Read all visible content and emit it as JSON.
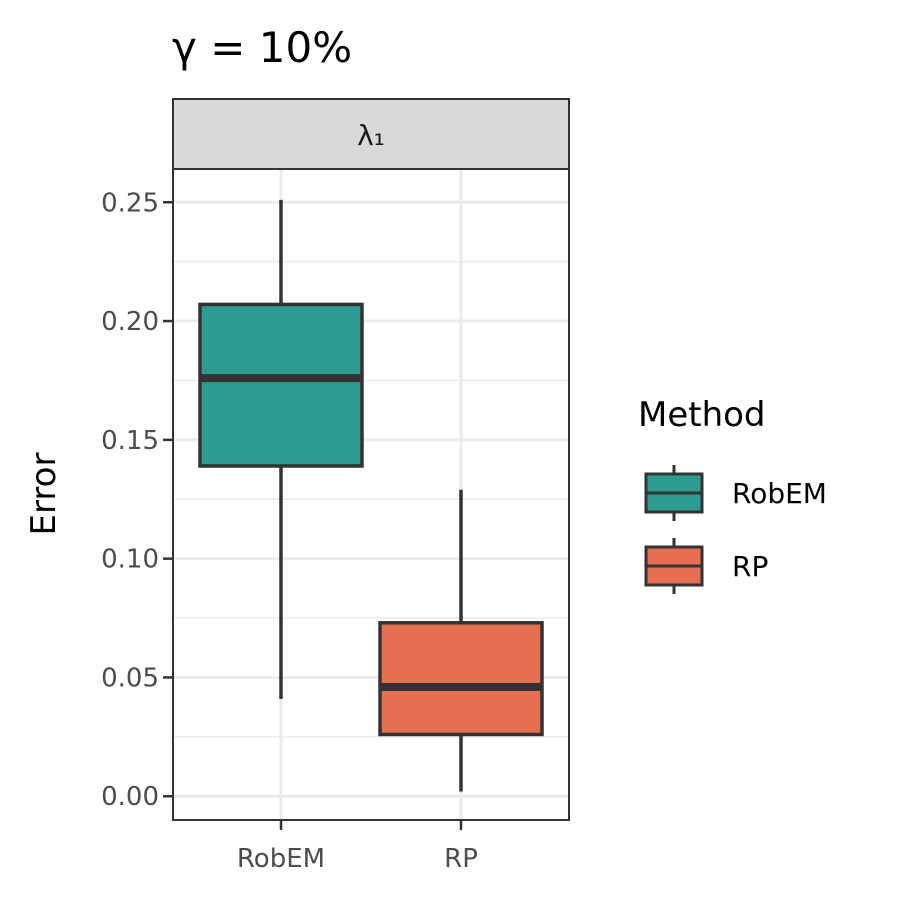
{
  "chart_data": {
    "type": "box",
    "title": "γ = 10%",
    "facet_label": "λ₁",
    "ylabel": "Error",
    "xlabel": "",
    "ylim": [
      -0.01,
      0.264
    ],
    "y_ticks": [
      0.0,
      0.05,
      0.1,
      0.15,
      0.2,
      0.25
    ],
    "y_tick_labels": [
      "0.00",
      "0.05",
      "0.10",
      "0.15",
      "0.20",
      "0.25"
    ],
    "categories": [
      "RobEM",
      "RP"
    ],
    "series": [
      {
        "name": "RobEM",
        "color": "#2A9D8F",
        "whisker_low": 0.041,
        "q1": 0.139,
        "median": 0.176,
        "q3": 0.207,
        "whisker_high": 0.251
      },
      {
        "name": "RP",
        "color": "#E76F51",
        "whisker_low": 0.002,
        "q1": 0.026,
        "median": 0.046,
        "q3": 0.073,
        "whisker_high": 0.129
      }
    ],
    "legend": {
      "title": "Method",
      "position": "right"
    },
    "grid": true,
    "theme": {
      "outline": "#333333",
      "grid_major": "#ebebeb",
      "strip_fill": "#d9d9d9"
    }
  }
}
